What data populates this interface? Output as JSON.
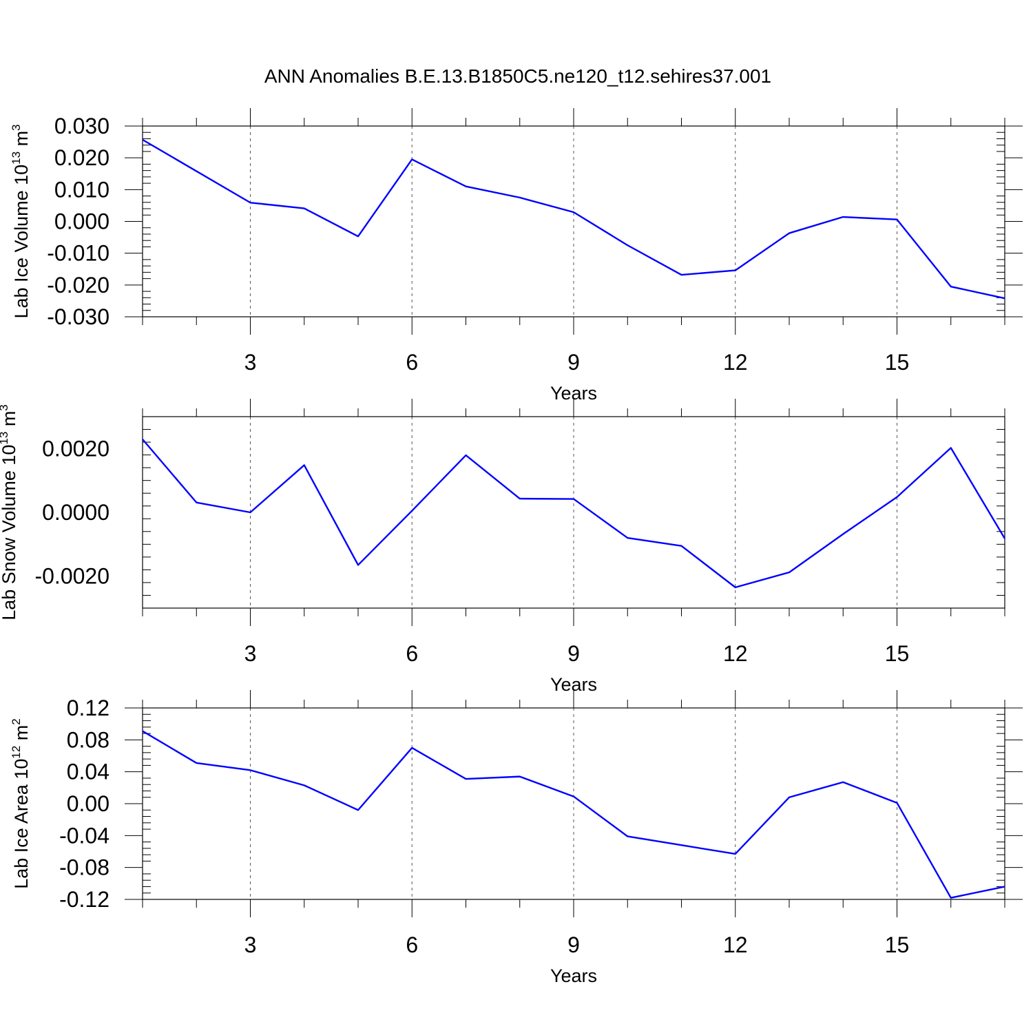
{
  "title": "ANN Anomalies B.E.13.B1850C5.ne120_t12.sehires37.001",
  "colors": {
    "series": "#0000ff"
  },
  "chart_data": [
    {
      "type": "line",
      "title": "",
      "xlabel": "Years",
      "ylabel": "Lab Ice Volume 10",
      "ylabel_exp": "13",
      "ylabel_unit": " m",
      "ylabel_unit_exp": "3",
      "xlim": [
        1,
        17
      ],
      "ylim": [
        -0.03,
        0.03
      ],
      "xticks": [
        3,
        6,
        9,
        12,
        15
      ],
      "yticks": [
        -0.03,
        -0.02,
        -0.01,
        0.0,
        0.01,
        0.02,
        0.03
      ],
      "ytick_labels": [
        "-0.030",
        "-0.020",
        "-0.010",
        "0.000",
        "0.010",
        "0.020",
        "0.030"
      ],
      "grid": "x-dashed",
      "x": [
        1,
        2,
        3,
        4,
        5,
        6,
        7,
        8,
        9,
        10,
        11,
        12,
        13,
        14,
        15,
        16,
        17
      ],
      "series": [
        {
          "values": [
            0.0257,
            0.0158,
            0.0059,
            0.0041,
            -0.0047,
            0.0195,
            0.011,
            0.0075,
            0.0029,
            -0.0075,
            -0.0168,
            -0.0154,
            -0.0037,
            0.0014,
            0.0006,
            -0.0205,
            -0.0242
          ]
        }
      ]
    },
    {
      "type": "line",
      "title": "",
      "xlabel": "Years",
      "ylabel": "Lab Snow Volume 10",
      "ylabel_exp": "13",
      "ylabel_unit": " m",
      "ylabel_unit_exp": "3",
      "xlim": [
        1,
        17
      ],
      "ylim": [
        -0.003,
        0.003
      ],
      "xticks": [
        3,
        6,
        9,
        12,
        15
      ],
      "yticks": [
        -0.002,
        0.0,
        0.002
      ],
      "ytick_labels": [
        "-0.0020",
        "0.0000",
        "0.0020"
      ],
      "grid": "x-dashed",
      "x": [
        1,
        2,
        3,
        4,
        5,
        6,
        7,
        8,
        9,
        10,
        11,
        12,
        13,
        14,
        15,
        16,
        17
      ],
      "series": [
        {
          "values": [
            0.00229,
            0.00031,
            0.0,
            0.00148,
            -0.00165,
            5e-05,
            0.00179,
            0.00043,
            0.00042,
            -0.0008,
            -0.00105,
            -0.00235,
            -0.00188,
            -0.00068,
            0.00048,
            0.00202,
            -0.00082
          ]
        }
      ]
    },
    {
      "type": "line",
      "title": "",
      "xlabel": "Years",
      "ylabel": "Lab Ice Area 10",
      "ylabel_exp": "12",
      "ylabel_unit": " m",
      "ylabel_unit_exp": "2",
      "xlim": [
        1,
        17
      ],
      "ylim": [
        -0.12,
        0.12
      ],
      "xticks": [
        3,
        6,
        9,
        12,
        15
      ],
      "yticks": [
        -0.12,
        -0.08,
        -0.04,
        0.0,
        0.04,
        0.08,
        0.12
      ],
      "ytick_labels": [
        "-0.12",
        "-0.08",
        "-0.04",
        "0.00",
        "0.04",
        "0.08",
        "0.12"
      ],
      "grid": "x-dashed",
      "x": [
        1,
        2,
        3,
        4,
        5,
        6,
        7,
        8,
        9,
        10,
        11,
        12,
        13,
        14,
        15,
        16,
        17
      ],
      "series": [
        {
          "values": [
            0.091,
            0.051,
            0.042,
            0.023,
            -0.008,
            0.07,
            0.031,
            0.034,
            0.009,
            -0.041,
            -0.052,
            -0.063,
            0.008,
            0.027,
            0.001,
            -0.118,
            -0.104
          ]
        }
      ]
    }
  ]
}
